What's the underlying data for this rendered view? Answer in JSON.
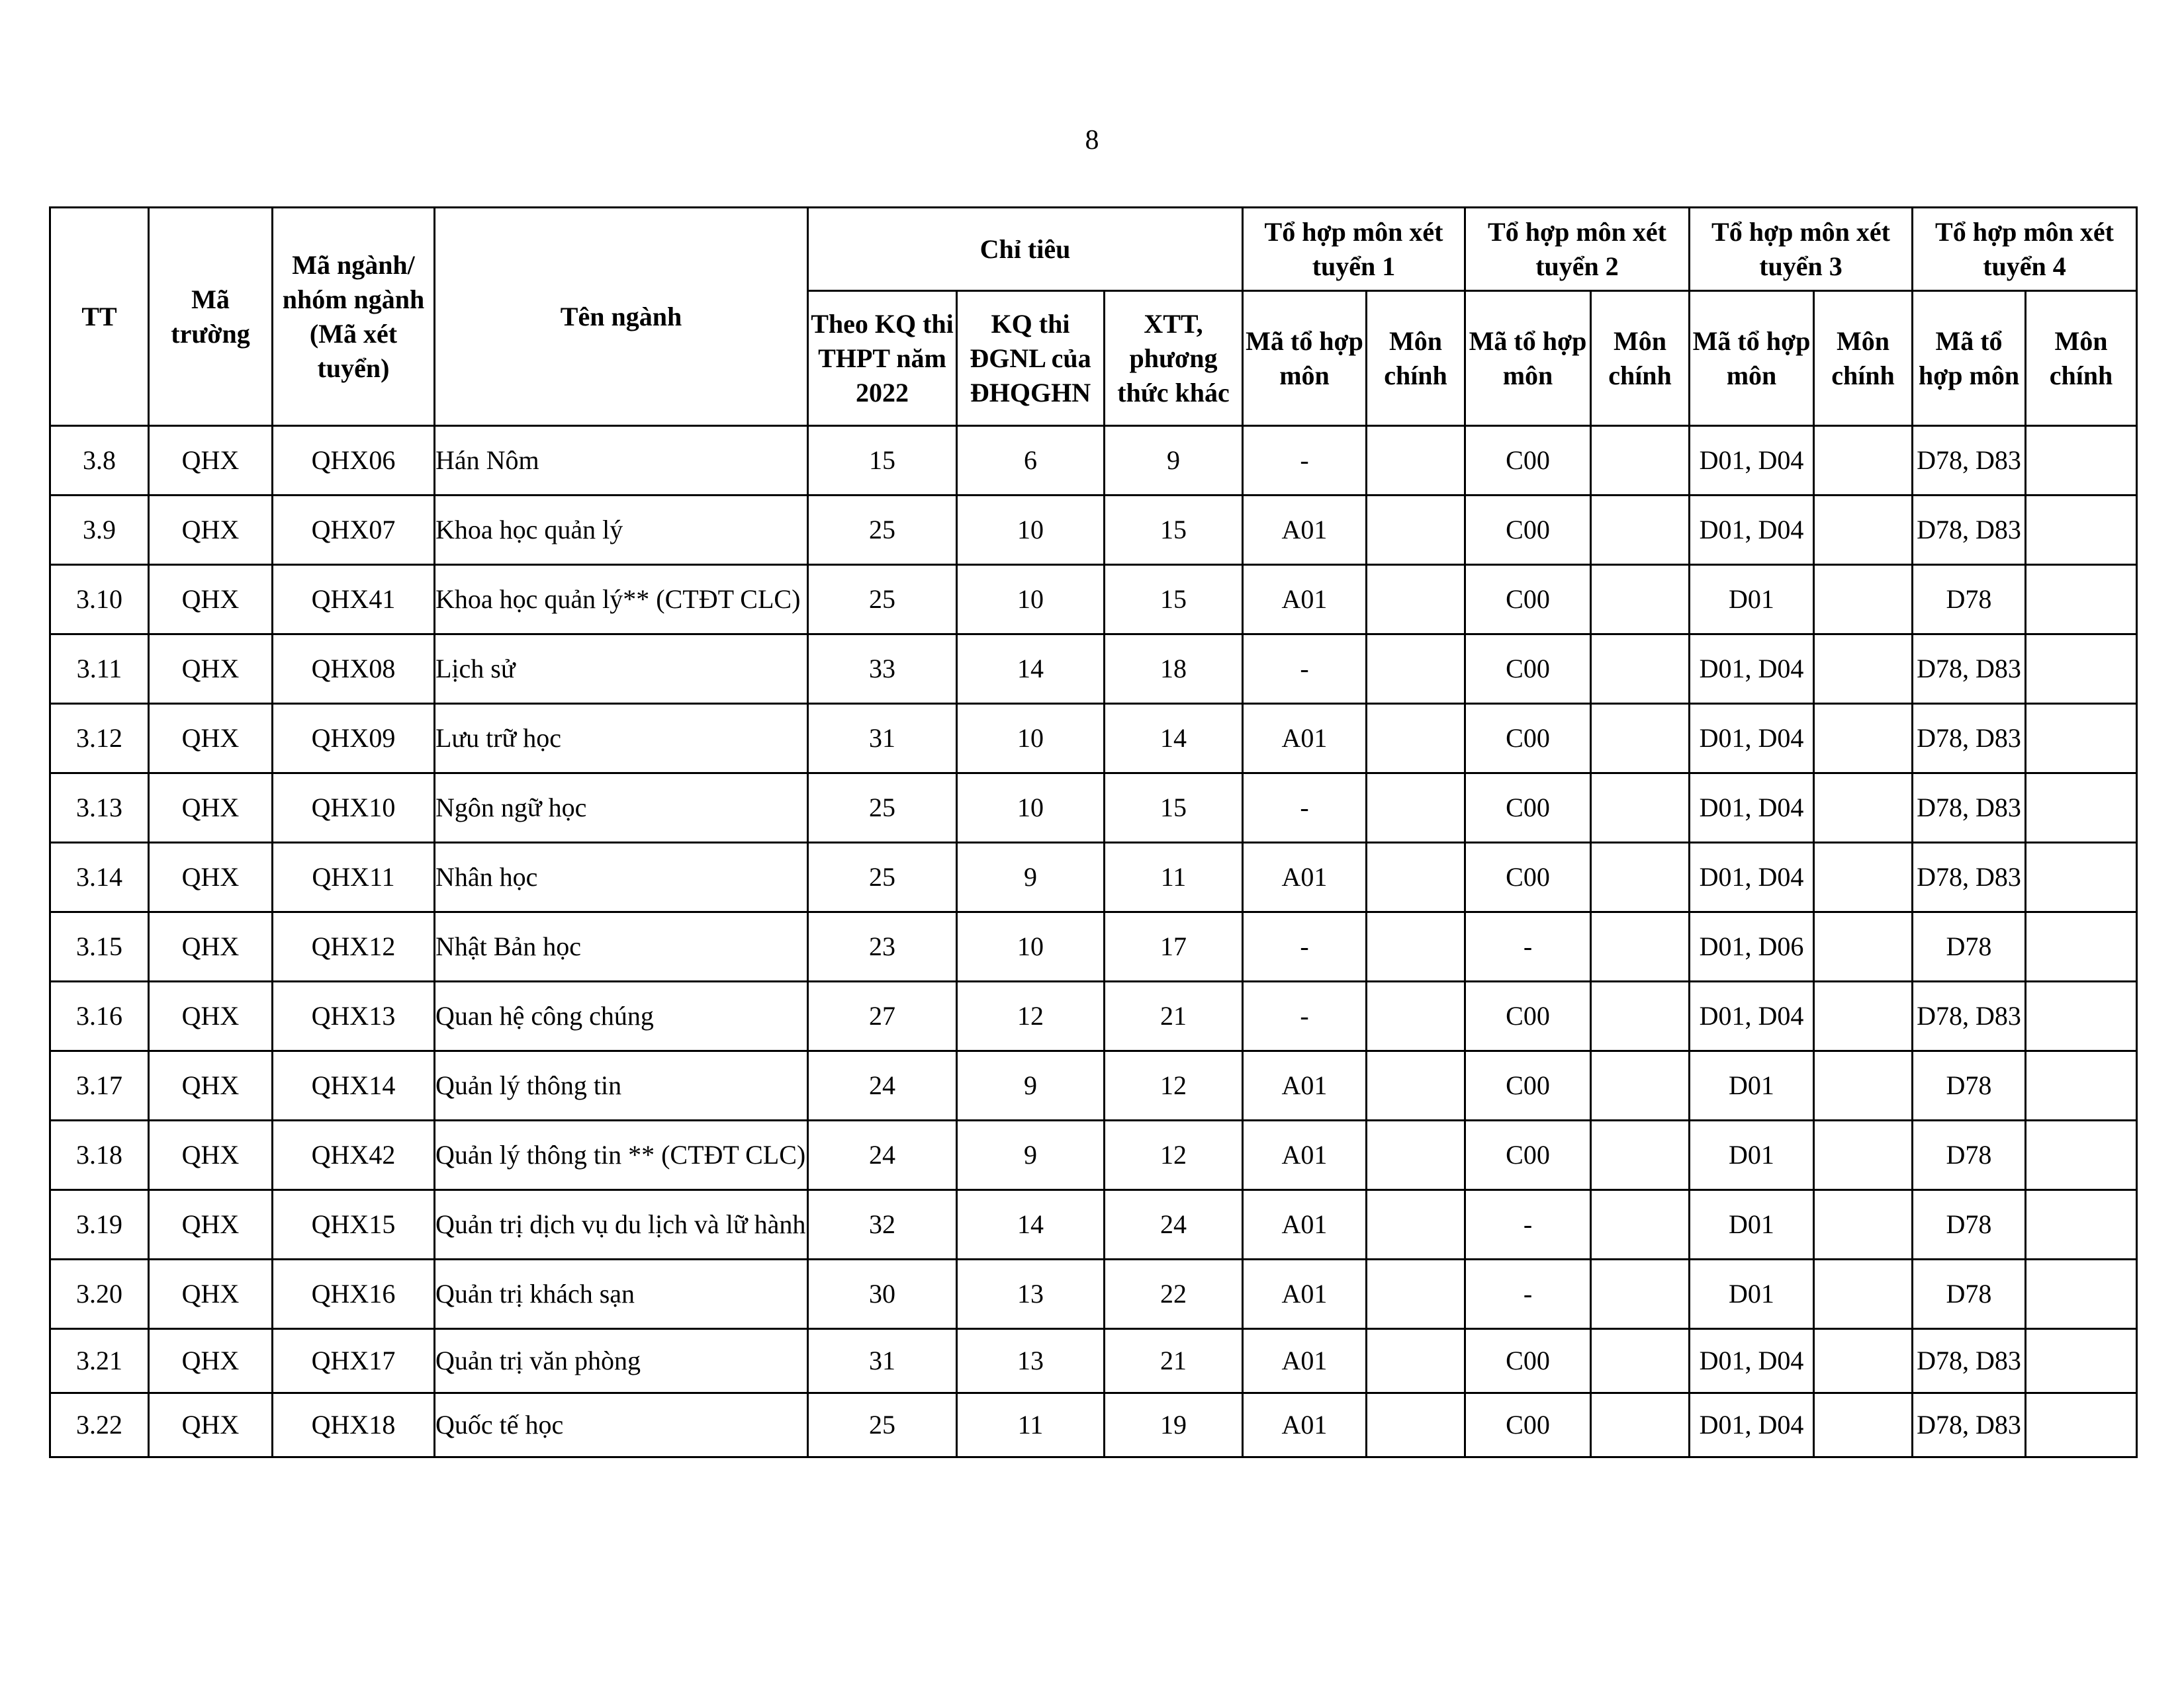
{
  "page_number": "8",
  "headers": {
    "tt": "TT",
    "ma_truong": "Mã trường",
    "ma_nganh": "Mã ngành/ nhóm ngành (Mã xét tuyển)",
    "ten_nganh": "Tên ngành",
    "chi_tieu": "Chỉ tiêu",
    "chi_tieu_sub": [
      "Theo KQ thi THPT năm 2022",
      "KQ thi ĐGNL của ĐHQGHN",
      "XTT, phương thức khác"
    ],
    "to_hop": [
      "Tổ hợp môn xét tuyển 1",
      "Tổ hợp môn xét tuyển 2",
      "Tổ hợp môn xét tuyển 3",
      "Tổ hợp môn xét tuyển 4"
    ],
    "ma_to_hop": "Mã tổ hợp môn",
    "mon_chinh": "Môn chính"
  },
  "rows": [
    {
      "tt": "3.8",
      "truong": "QHX",
      "ma": "QHX06",
      "ten": "Hán Nôm",
      "thpt": "15",
      "dgnl": "6",
      "khac": "9",
      "th1": "-",
      "th2": "C00",
      "th3": "D01, D04",
      "th4": "D78, D83"
    },
    {
      "tt": "3.9",
      "truong": "QHX",
      "ma": "QHX07",
      "ten": "Khoa học quản lý",
      "thpt": "25",
      "dgnl": "10",
      "khac": "15",
      "th1": "A01",
      "th2": "C00",
      "th3": "D01, D04",
      "th4": "D78, D83"
    },
    {
      "tt": "3.10",
      "truong": "QHX",
      "ma": "QHX41",
      "ten": "Khoa học quản lý** (CTĐT CLC)",
      "thpt": "25",
      "dgnl": "10",
      "khac": "15",
      "th1": "A01",
      "th2": "C00",
      "th3": "D01",
      "th4": "D78"
    },
    {
      "tt": "3.11",
      "truong": "QHX",
      "ma": "QHX08",
      "ten": "Lịch sử",
      "thpt": "33",
      "dgnl": "14",
      "khac": "18",
      "th1": "-",
      "th2": "C00",
      "th3": "D01, D04",
      "th4": "D78, D83"
    },
    {
      "tt": "3.12",
      "truong": "QHX",
      "ma": "QHX09",
      "ten": "Lưu trữ học",
      "thpt": "31",
      "dgnl": "10",
      "khac": "14",
      "th1": "A01",
      "th2": "C00",
      "th3": "D01, D04",
      "th4": "D78, D83"
    },
    {
      "tt": "3.13",
      "truong": "QHX",
      "ma": "QHX10",
      "ten": "Ngôn ngữ học",
      "thpt": "25",
      "dgnl": "10",
      "khac": "15",
      "th1": "-",
      "th2": "C00",
      "th3": "D01, D04",
      "th4": "D78, D83"
    },
    {
      "tt": "3.14",
      "truong": "QHX",
      "ma": "QHX11",
      "ten": "Nhân học",
      "thpt": "25",
      "dgnl": "9",
      "khac": "11",
      "th1": "A01",
      "th2": "C00",
      "th3": "D01, D04",
      "th4": "D78, D83"
    },
    {
      "tt": "3.15",
      "truong": "QHX",
      "ma": "QHX12",
      "ten": "Nhật Bản học",
      "thpt": "23",
      "dgnl": "10",
      "khac": "17",
      "th1": "-",
      "th2": "-",
      "th3": "D01, D06",
      "th4": "D78"
    },
    {
      "tt": "3.16",
      "truong": "QHX",
      "ma": "QHX13",
      "ten": "Quan hệ công chúng",
      "thpt": "27",
      "dgnl": "12",
      "khac": "21",
      "th1": "-",
      "th2": "C00",
      "th3": "D01, D04",
      "th4": "D78, D83"
    },
    {
      "tt": "3.17",
      "truong": "QHX",
      "ma": "QHX14",
      "ten": "Quản lý thông tin",
      "thpt": "24",
      "dgnl": "9",
      "khac": "12",
      "th1": "A01",
      "th2": "C00",
      "th3": "D01",
      "th4": "D78"
    },
    {
      "tt": "3.18",
      "truong": "QHX",
      "ma": "QHX42",
      "ten": "Quản lý thông tin ** (CTĐT CLC)",
      "thpt": "24",
      "dgnl": "9",
      "khac": "12",
      "th1": "A01",
      "th2": "C00",
      "th3": "D01",
      "th4": "D78"
    },
    {
      "tt": "3.19",
      "truong": "QHX",
      "ma": "QHX15",
      "ten": "Quản trị dịch vụ du lịch và lữ hành",
      "thpt": "32",
      "dgnl": "14",
      "khac": "24",
      "th1": "A01",
      "th2": "-",
      "th3": "D01",
      "th4": "D78"
    },
    {
      "tt": "3.20",
      "truong": "QHX",
      "ma": "QHX16",
      "ten": "Quản trị khách sạn",
      "thpt": "30",
      "dgnl": "13",
      "khac": "22",
      "th1": "A01",
      "th2": "-",
      "th3": "D01",
      "th4": "D78"
    },
    {
      "tt": "3.21",
      "truong": "QHX",
      "ma": "QHX17",
      "ten": "Quản trị văn phòng",
      "thpt": "31",
      "dgnl": "13",
      "khac": "21",
      "th1": "A01",
      "th2": "C00",
      "th3": "D01, D04",
      "th4": "D78, D83"
    },
    {
      "tt": "3.22",
      "truong": "QHX",
      "ma": "QHX18",
      "ten": "Quốc tế học",
      "thpt": "25",
      "dgnl": "11",
      "khac": "19",
      "th1": "A01",
      "th2": "C00",
      "th3": "D01, D04",
      "th4": "D78, D83"
    }
  ]
}
